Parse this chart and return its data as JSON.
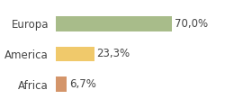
{
  "categories": [
    "Africa",
    "America",
    "Europa"
  ],
  "values": [
    6.7,
    23.3,
    70.0
  ],
  "labels": [
    "6,7%",
    "23,3%",
    "70,0%"
  ],
  "bar_colors": [
    "#d4956a",
    "#f0c96b",
    "#a8bc8a"
  ],
  "background_color": "#ffffff",
  "xlim": [
    0,
    100
  ],
  "bar_height": 0.5,
  "label_fontsize": 8.5,
  "tick_fontsize": 8.5,
  "figsize": [
    2.8,
    1.2
  ],
  "dpi": 100
}
